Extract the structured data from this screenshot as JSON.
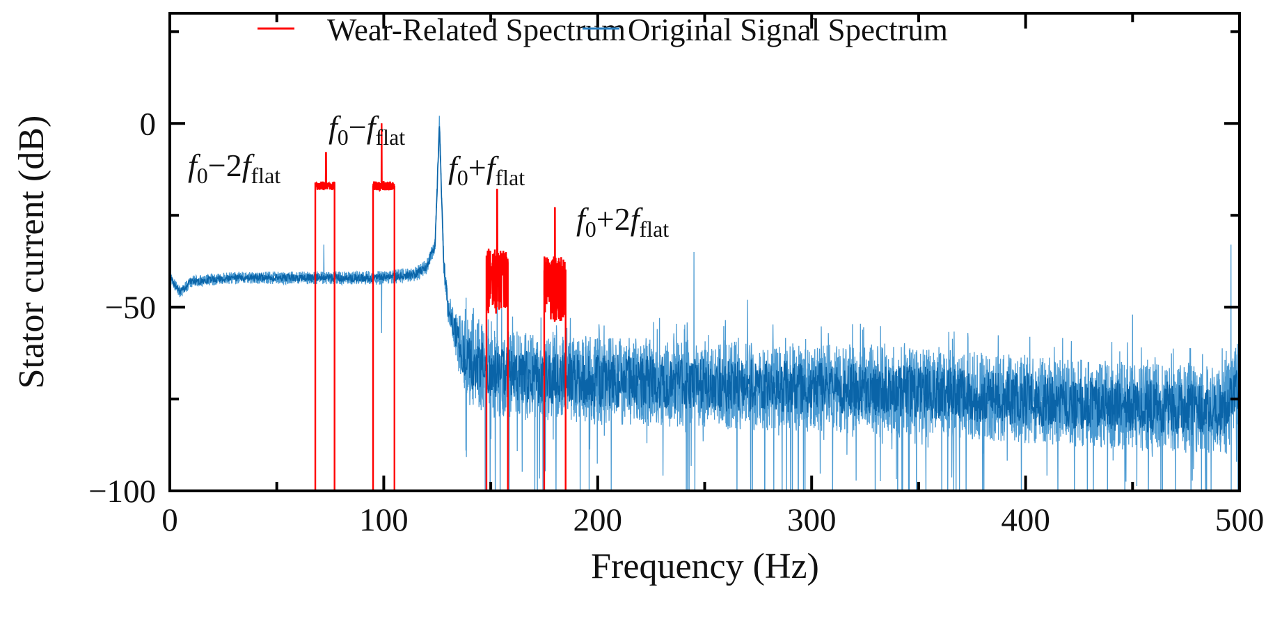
{
  "chart_data": {
    "type": "line",
    "title": "",
    "xlabel": "Frequency (Hz)",
    "ylabel": "Stator current (dB)",
    "xlim": [
      0,
      500
    ],
    "ylim": [
      -100,
      30
    ],
    "xticks": [
      0,
      100,
      200,
      300,
      400,
      500
    ],
    "xtick_labels": [
      "0",
      "100",
      "200",
      "300",
      "400",
      "500"
    ],
    "yticks": [
      0,
      -50,
      -100
    ],
    "ytick_labels": [
      "0",
      "−50",
      "−100"
    ],
    "grid": false,
    "legend": {
      "placement": "top",
      "entries": [
        {
          "label": "Wear-Related Spectrum",
          "color": "#ff0000"
        },
        {
          "label": "Original Signal Spectrum",
          "color": "#2a7fc0"
        }
      ]
    },
    "series": [
      {
        "name": "Original Signal Spectrum",
        "color": "#0a64a8",
        "baseline": {
          "x": [
            0,
            5,
            10,
            30,
            60,
            100,
            115,
            120,
            124,
            126,
            128,
            130,
            135,
            140,
            150,
            170,
            200,
            250,
            300,
            350,
            400,
            450,
            490,
            494,
            500
          ],
          "y": [
            -42,
            -46,
            -43,
            -42,
            -42,
            -42,
            -41,
            -39,
            -33,
            0,
            -38,
            -50,
            -60,
            -65,
            -68,
            -69,
            -70,
            -71,
            -72,
            -73,
            -75,
            -77,
            -78,
            -78,
            -70
          ]
        },
        "noise_spread_db": {
          "x": [
            0,
            124,
            130,
            140,
            500
          ],
          "y": [
            1.5,
            2,
            4,
            12,
            12
          ]
        },
        "peaks": [
          {
            "x": 72,
            "y": -33
          },
          {
            "x": 99,
            "y": -57
          },
          {
            "x": 153,
            "y": -44
          },
          {
            "x": 203,
            "y": -55
          },
          {
            "x": 245,
            "y": -35
          },
          {
            "x": 270,
            "y": -48
          },
          {
            "x": 373,
            "y": -57
          },
          {
            "x": 450,
            "y": -52
          },
          {
            "x": 496,
            "y": -33
          }
        ]
      },
      {
        "name": "Wear-Related Spectrum",
        "color": "#ff0000",
        "bands": [
          {
            "x_start": 68,
            "x_end": 77,
            "level": -17,
            "peak_x": 73,
            "peak_y": -8
          },
          {
            "x_start": 95,
            "x_end": 105,
            "level": -17,
            "peak_x": 99,
            "peak_y": 0
          },
          {
            "x_start": 148,
            "x_end": 158,
            "level": -38,
            "peak_x": 153,
            "peak_y": -18
          },
          {
            "x_start": 175,
            "x_end": 185,
            "level": -40,
            "peak_x": 180,
            "peak_y": -23
          }
        ],
        "floor": -100
      }
    ],
    "annotations": [
      {
        "f1": "f",
        "s1": "0",
        "op": "−2",
        "f2": "f",
        "s2": "flat"
      },
      {
        "f1": "f",
        "s1": "0",
        "op": "−",
        "f2": "f",
        "s2": "flat"
      },
      {
        "f1": "f",
        "s1": "0",
        "op": "+",
        "f2": "f",
        "s2": "flat"
      },
      {
        "f1": "f",
        "s1": "0",
        "op": "+2",
        "f2": "f",
        "s2": "flat"
      }
    ]
  }
}
